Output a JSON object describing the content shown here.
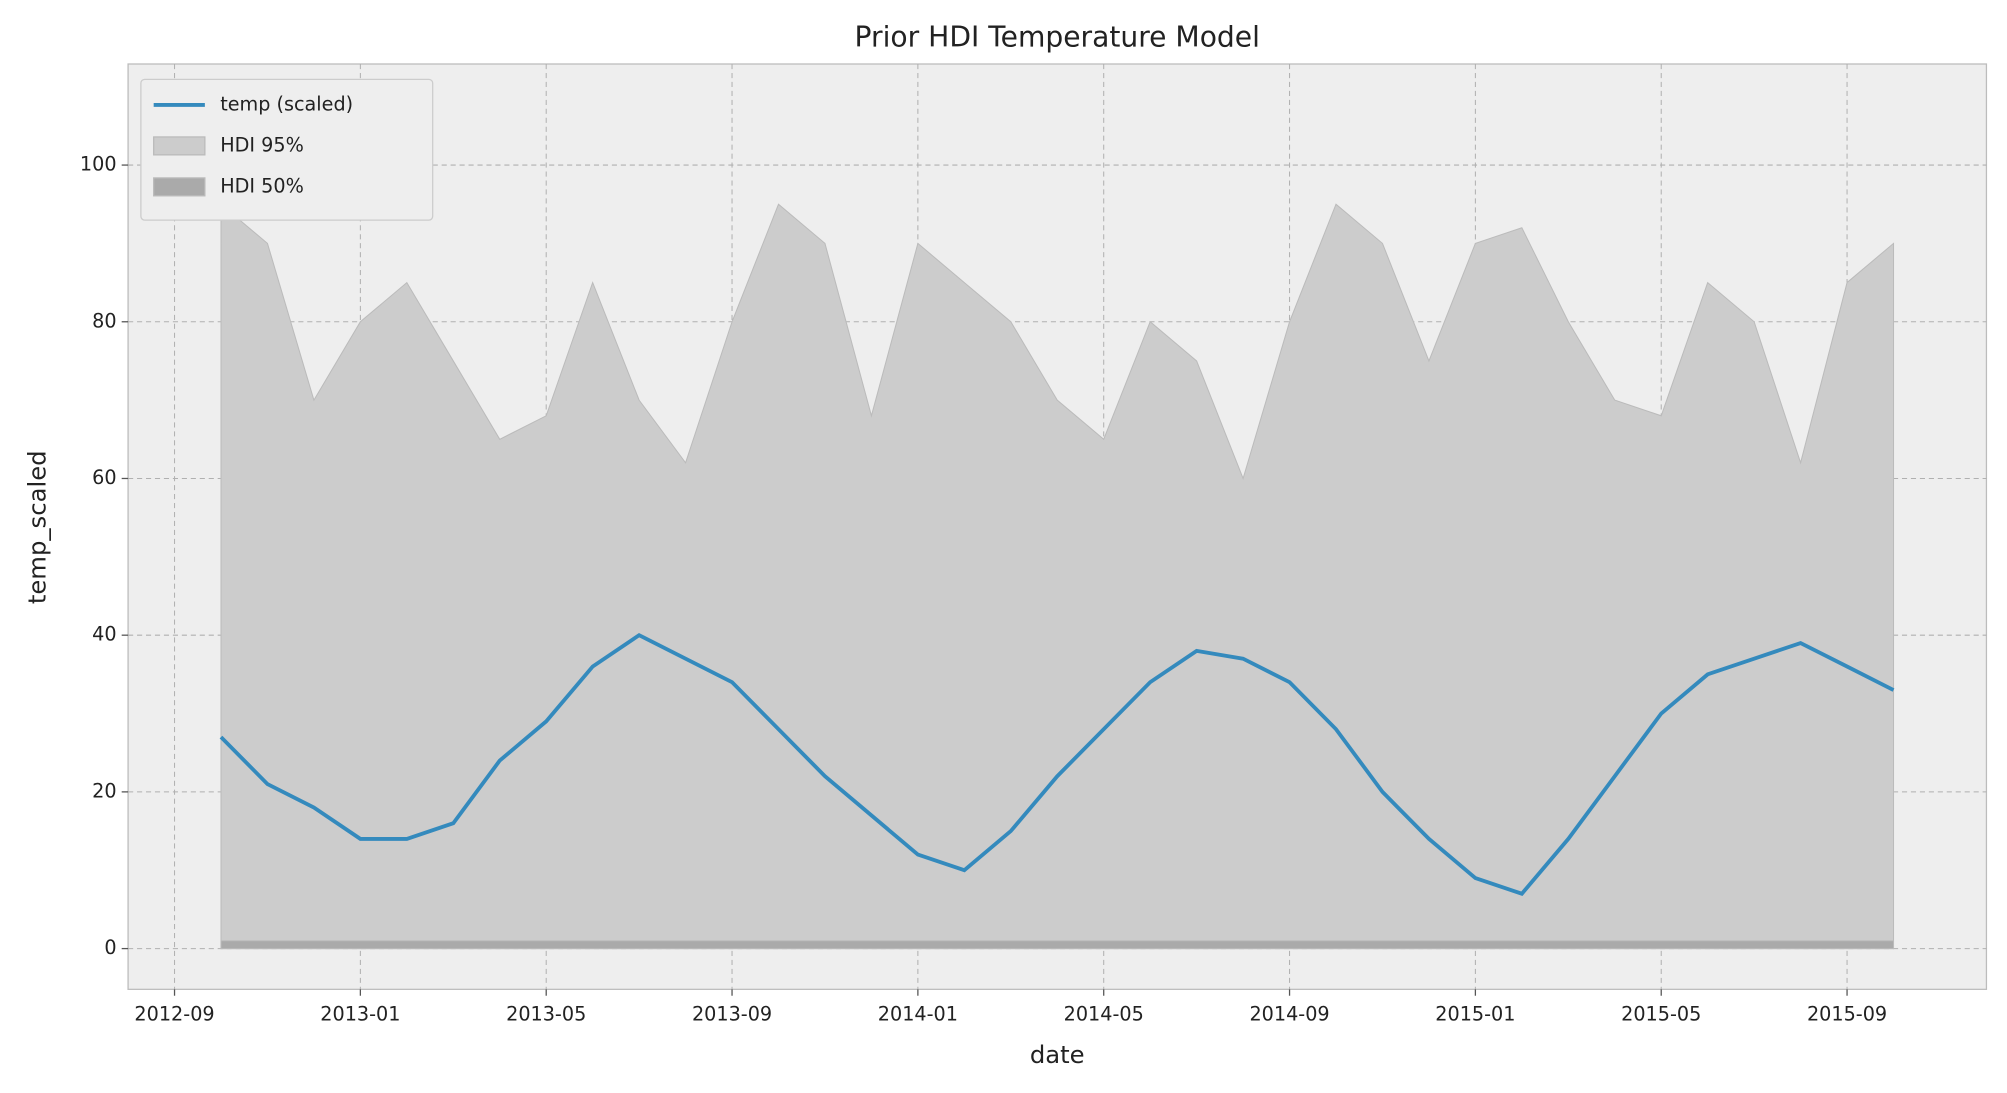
{
  "chart_data": {
    "type": "line",
    "title": "Prior HDI Temperature Model",
    "x_label": "date",
    "y_label": "temp_scaled",
    "x": [
      "2012-10",
      "2012-11",
      "2012-12",
      "2013-01",
      "2013-02",
      "2013-03",
      "2013-04",
      "2013-05",
      "2013-06",
      "2013-07",
      "2013-08",
      "2013-09",
      "2013-10",
      "2013-11",
      "2013-12",
      "2014-01",
      "2014-02",
      "2014-03",
      "2014-04",
      "2014-05",
      "2014-06",
      "2014-07",
      "2014-08",
      "2014-09",
      "2014-10",
      "2014-11",
      "2014-12",
      "2015-01",
      "2015-02",
      "2015-03",
      "2015-04",
      "2015-05",
      "2015-06",
      "2015-07",
      "2015-08",
      "2015-09",
      "2015-10"
    ],
    "series": [
      {
        "name": "temp (scaled)",
        "type": "line",
        "color": "#348abd",
        "values": [
          27,
          21,
          18,
          14,
          14,
          16,
          24,
          29,
          36,
          40,
          37,
          34,
          28,
          22,
          17,
          12,
          10,
          15,
          22,
          28,
          34,
          38,
          37,
          34,
          28,
          20,
          14,
          9,
          7,
          14,
          22,
          30,
          35,
          37,
          39,
          36,
          33
        ]
      },
      {
        "name": "HDI 95%",
        "type": "band",
        "color": "#cccccc",
        "lower": [
          0,
          0,
          0,
          0,
          0,
          0,
          0,
          0,
          0,
          0,
          0,
          0,
          0,
          0,
          0,
          0,
          0,
          0,
          0,
          0,
          0,
          0,
          0,
          0,
          0,
          0,
          0,
          0,
          0,
          0,
          0,
          0,
          0,
          0,
          0,
          0,
          0
        ],
        "upper": [
          95,
          90,
          70,
          80,
          85,
          75,
          65,
          68,
          85,
          70,
          62,
          80,
          95,
          90,
          68,
          90,
          85,
          80,
          70,
          65,
          80,
          75,
          60,
          80,
          95,
          90,
          75,
          90,
          92,
          80,
          70,
          68,
          85,
          80,
          62,
          85,
          90
        ]
      },
      {
        "name": "HDI 50%",
        "type": "band",
        "color": "#aaaaaa",
        "lower": [
          0,
          0,
          0,
          0,
          0,
          0,
          0,
          0,
          0,
          0,
          0,
          0,
          0,
          0,
          0,
          0,
          0,
          0,
          0,
          0,
          0,
          0,
          0,
          0,
          0,
          0,
          0,
          0,
          0,
          0,
          0,
          0,
          0,
          0,
          0,
          0,
          0
        ],
        "upper": [
          1,
          1,
          1,
          1,
          1,
          1,
          1,
          1,
          1,
          1,
          1,
          1,
          1,
          1,
          1,
          1,
          1,
          1,
          1,
          1,
          1,
          1,
          1,
          1,
          1,
          1,
          1,
          1,
          1,
          1,
          1,
          1,
          1,
          1,
          1,
          1,
          1
        ]
      }
    ],
    "xlim": [
      "2012-08",
      "2015-12"
    ],
    "xticks": [
      "2012-09",
      "2013-01",
      "2013-05",
      "2013-09",
      "2014-01",
      "2014-05",
      "2014-09",
      "2015-01",
      "2015-05",
      "2015-09"
    ],
    "ylim": [
      -5.2,
      112.9
    ],
    "yticks": [
      0,
      20,
      40,
      60,
      80,
      100
    ],
    "grid": true,
    "legend": "upper left"
  }
}
